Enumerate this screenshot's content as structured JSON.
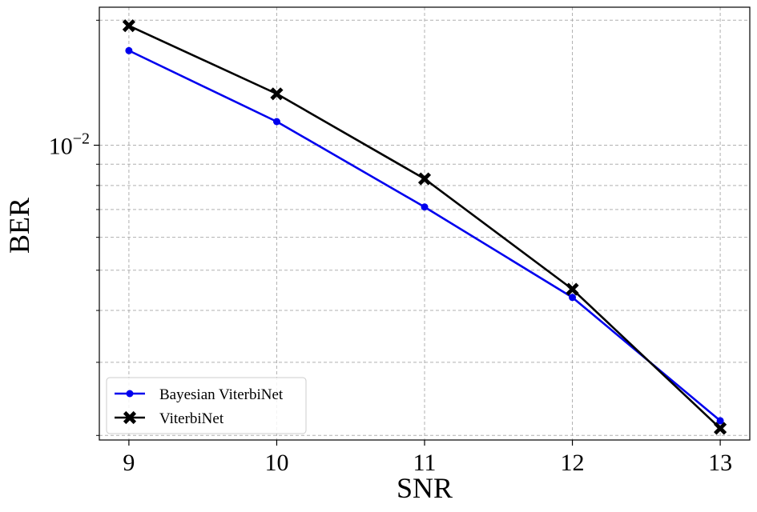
{
  "chart_data": {
    "type": "line",
    "xlabel": "SNR",
    "ylabel": "BER",
    "x": [
      9,
      10,
      11,
      12,
      13
    ],
    "x_ticks": [
      "9",
      "10",
      "11",
      "12",
      "13"
    ],
    "xlim": [
      8.8,
      13.2
    ],
    "yscale": "log",
    "ylim": [
      0.00195,
      0.0215
    ],
    "y_major_tick": {
      "value": 0.01,
      "base": "10",
      "exponent": "−2"
    },
    "y_minor_ticks": [
      0.002,
      0.003,
      0.004,
      0.005,
      0.006,
      0.007,
      0.008,
      0.009,
      0.02
    ],
    "grid": true,
    "legend": {
      "placement": "lower-left"
    },
    "series": [
      {
        "name": "Bayesian ViterbiNet",
        "color": "#0000ee",
        "marker": "circle",
        "values": [
          0.0169,
          0.0114,
          0.0071,
          0.0043,
          0.00217
        ]
      },
      {
        "name": "ViterbiNet",
        "color": "#000000",
        "marker": "x",
        "values": [
          0.0194,
          0.0133,
          0.0083,
          0.0045,
          0.00208
        ]
      }
    ]
  }
}
